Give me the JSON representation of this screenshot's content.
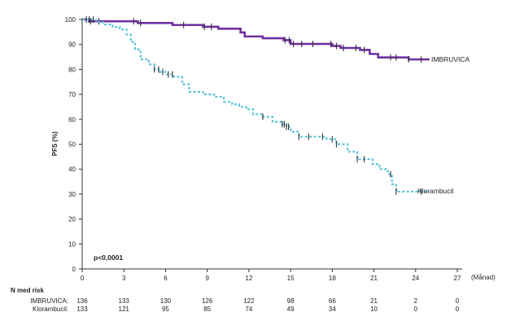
{
  "chart_data": {
    "type": "line",
    "title": "",
    "ylabel": "PFS (%)",
    "xlabel": "(Månad)",
    "xlim": [
      0,
      27
    ],
    "ylim": [
      0,
      100
    ],
    "x_ticks": [
      0,
      3,
      6,
      9,
      12,
      15,
      18,
      21,
      24,
      27
    ],
    "y_ticks": [
      0,
      10,
      20,
      30,
      40,
      50,
      60,
      70,
      80,
      90,
      100
    ],
    "annotation": "p<0,0001",
    "series": [
      {
        "name": "IMBRUVICA",
        "color": "#7030a0",
        "line_style": "solid",
        "steps": [
          [
            0,
            100
          ],
          [
            0.5,
            99.3
          ],
          [
            4,
            98.6
          ],
          [
            6.5,
            97.8
          ],
          [
            8.7,
            97.1
          ],
          [
            9.8,
            96.3
          ],
          [
            11.4,
            94.8
          ],
          [
            11.7,
            93.2
          ],
          [
            13,
            92.5
          ],
          [
            14.5,
            91.7
          ],
          [
            15,
            90.2
          ],
          [
            18,
            89.4
          ],
          [
            18.6,
            88.6
          ],
          [
            20,
            87.8
          ],
          [
            20.7,
            86.2
          ],
          [
            21.3,
            84.8
          ],
          [
            23.5,
            84
          ],
          [
            25,
            84
          ]
        ],
        "censor_x": [
          0.3,
          0.6,
          1.2,
          3.7,
          4.2,
          7.3,
          8.8,
          9.3,
          14.6,
          14.9,
          15.2,
          15.8,
          16.6,
          17.9,
          18.3,
          18.8,
          19.7,
          20.3,
          22.2,
          22.6,
          23.5,
          24.4
        ]
      },
      {
        "name": "Klorambucil",
        "color": "#5bc4d8",
        "line_style": "dashed",
        "steps": [
          [
            0,
            100
          ],
          [
            1,
            99
          ],
          [
            1.5,
            98
          ],
          [
            2.2,
            97
          ],
          [
            2.7,
            96
          ],
          [
            3.2,
            94
          ],
          [
            3.5,
            91
          ],
          [
            3.8,
            88
          ],
          [
            4.2,
            84
          ],
          [
            4.8,
            82
          ],
          [
            5.2,
            80
          ],
          [
            5.6,
            79
          ],
          [
            6,
            78
          ],
          [
            6.6,
            77
          ],
          [
            7.2,
            74
          ],
          [
            7.7,
            71
          ],
          [
            8.7,
            70
          ],
          [
            9.5,
            69
          ],
          [
            10.2,
            67
          ],
          [
            10.8,
            66
          ],
          [
            11.3,
            65
          ],
          [
            11.8,
            64
          ],
          [
            12.3,
            62
          ],
          [
            13,
            61
          ],
          [
            13.7,
            59
          ],
          [
            14.4,
            58
          ],
          [
            14.7,
            57
          ],
          [
            15,
            55
          ],
          [
            15.6,
            53
          ],
          [
            17.6,
            52
          ],
          [
            18.3,
            50
          ],
          [
            19.1,
            47
          ],
          [
            19.8,
            44
          ],
          [
            20.9,
            42
          ],
          [
            21.4,
            40
          ],
          [
            22,
            38
          ],
          [
            22.3,
            34
          ],
          [
            22.6,
            31
          ],
          [
            25,
            31
          ]
        ],
        "censor_x": [
          0.5,
          0.8,
          5.2,
          5.5,
          5.8,
          6.2,
          6.5,
          13,
          14.4,
          14.55,
          14.7,
          14.85,
          15.6,
          16.3,
          17.3,
          18,
          18.3,
          19.8,
          20.3,
          22.2,
          22.6,
          24.4
        ]
      }
    ],
    "risk_table": {
      "title": "N med risk",
      "rows": [
        {
          "label": "IMBRUVICA:",
          "values": [
            "136",
            "133",
            "130",
            "126",
            "122",
            "98",
            "66",
            "21",
            "2",
            "0"
          ]
        },
        {
          "label": "Klorambucil:",
          "values": [
            "133",
            "121",
            "95",
            "85",
            "74",
            "49",
            "34",
            "10",
            "0",
            "0"
          ]
        }
      ]
    }
  }
}
